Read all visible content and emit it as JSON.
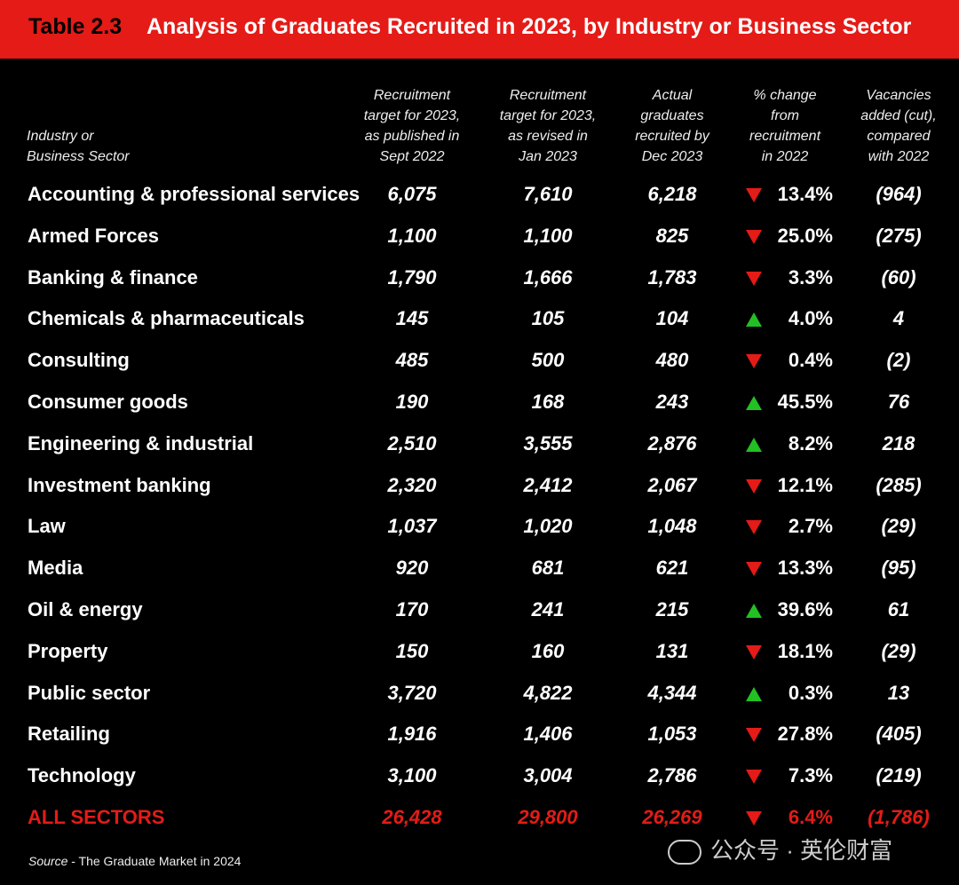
{
  "title": {
    "number": "Table 2.3",
    "text": "Analysis of Graduates Recruited in 2023, by Industry or Business Sector"
  },
  "headers": [
    "Industry or\nBusiness Sector",
    "Recruitment\ntarget for 2023,\nas published in\nSept 2022",
    "Recruitment\ntarget for 2023,\nas revised in\nJan 2023",
    "Actual\ngraduates\nrecruited by\nDec 2023",
    "% change\nfrom\nrecruitment\nin 2022",
    "Vacancies\nadded (cut),\ncompared\nwith 2022"
  ],
  "colors": {
    "accent": "#e41b17",
    "up": "#22c022",
    "down": "#e41b17"
  },
  "chart_data": {
    "type": "table",
    "title": "Analysis of Graduates Recruited in 2023, by Industry or Business Sector",
    "rows": [
      {
        "sector": "Accounting & professional services",
        "sept": "6,075",
        "jan": "7,610",
        "actual": "6,218",
        "dir": "down",
        "pct": "13.4%",
        "vac": "(964)"
      },
      {
        "sector": "Armed Forces",
        "sept": "1,100",
        "jan": "1,100",
        "actual": "825",
        "dir": "down",
        "pct": "25.0%",
        "vac": "(275)"
      },
      {
        "sector": "Banking & finance",
        "sept": "1,790",
        "jan": "1,666",
        "actual": "1,783",
        "dir": "down",
        "pct": "3.3%",
        "vac": "(60)"
      },
      {
        "sector": "Chemicals & pharmaceuticals",
        "sept": "145",
        "jan": "105",
        "actual": "104",
        "dir": "up",
        "pct": "4.0%",
        "vac": "4"
      },
      {
        "sector": "Consulting",
        "sept": "485",
        "jan": "500",
        "actual": "480",
        "dir": "down",
        "pct": "0.4%",
        "vac": "(2)"
      },
      {
        "sector": "Consumer goods",
        "sept": "190",
        "jan": "168",
        "actual": "243",
        "dir": "up",
        "pct": "45.5%",
        "vac": "76"
      },
      {
        "sector": "Engineering & industrial",
        "sept": "2,510",
        "jan": "3,555",
        "actual": "2,876",
        "dir": "up",
        "pct": "8.2%",
        "vac": "218"
      },
      {
        "sector": "Investment banking",
        "sept": "2,320",
        "jan": "2,412",
        "actual": "2,067",
        "dir": "down",
        "pct": "12.1%",
        "vac": "(285)"
      },
      {
        "sector": "Law",
        "sept": "1,037",
        "jan": "1,020",
        "actual": "1,048",
        "dir": "down",
        "pct": "2.7%",
        "vac": "(29)"
      },
      {
        "sector": "Media",
        "sept": "920",
        "jan": "681",
        "actual": "621",
        "dir": "down",
        "pct": "13.3%",
        "vac": "(95)"
      },
      {
        "sector": "Oil & energy",
        "sept": "170",
        "jan": "241",
        "actual": "215",
        "dir": "up",
        "pct": "39.6%",
        "vac": "61"
      },
      {
        "sector": "Property",
        "sept": "150",
        "jan": "160",
        "actual": "131",
        "dir": "down",
        "pct": "18.1%",
        "vac": "(29)"
      },
      {
        "sector": "Public sector",
        "sept": "3,720",
        "jan": "4,822",
        "actual": "4,344",
        "dir": "up",
        "pct": "0.3%",
        "vac": "13"
      },
      {
        "sector": "Retailing",
        "sept": "1,916",
        "jan": "1,406",
        "actual": "1,053",
        "dir": "down",
        "pct": "27.8%",
        "vac": "(405)"
      },
      {
        "sector": "Technology",
        "sept": "3,100",
        "jan": "3,004",
        "actual": "2,786",
        "dir": "down",
        "pct": "7.3%",
        "vac": "(219)"
      }
    ],
    "total": {
      "sector": "ALL SECTORS",
      "sept": "26,428",
      "jan": "29,800",
      "actual": "26,269",
      "dir": "down",
      "pct": "6.4%",
      "vac": "(1,786)"
    }
  },
  "source": {
    "label": "Source",
    "text": " - The Graduate Market in 2024"
  },
  "watermark": "公众号 · 英伦财富"
}
